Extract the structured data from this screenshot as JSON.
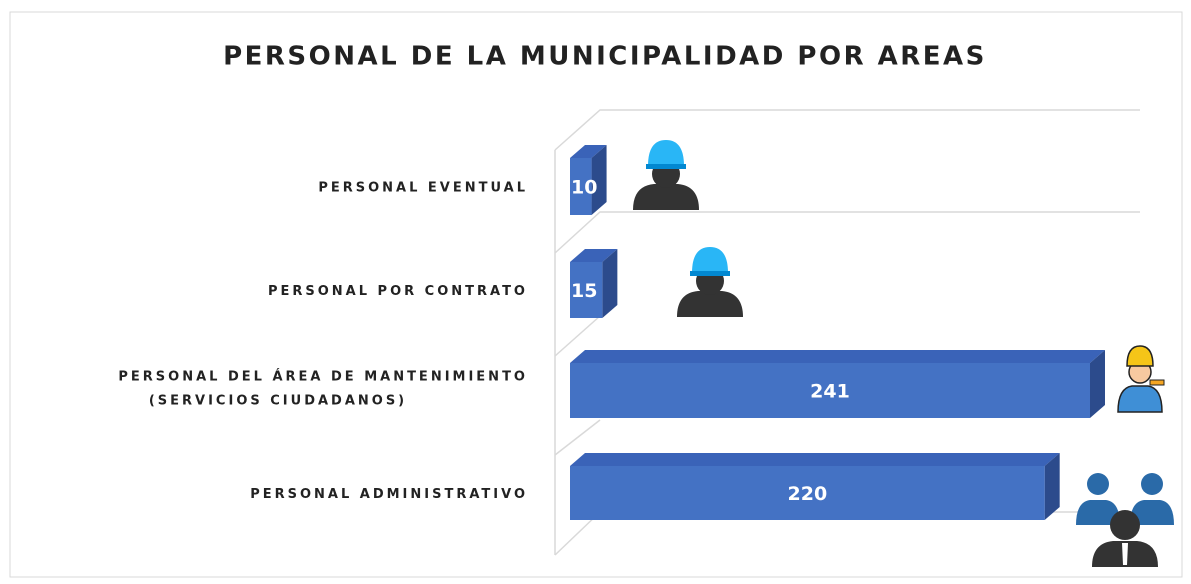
{
  "chart_data": {
    "type": "bar3d",
    "title": "PERSONAL DE LA MUNICIPALIDAD POR AREAS",
    "categories": [
      "PERSONAL EVENTUAL",
      "PERSONAL POR CONTRATO",
      "PERSONAL DEL ÁREA DE MANTENIMIENTO\n(SERVICIOS CIUDADANOS)",
      "PERSONAL ADMINISTRATIVO"
    ],
    "values": [
      10,
      15,
      241,
      220
    ],
    "color": "#4472c4"
  }
}
